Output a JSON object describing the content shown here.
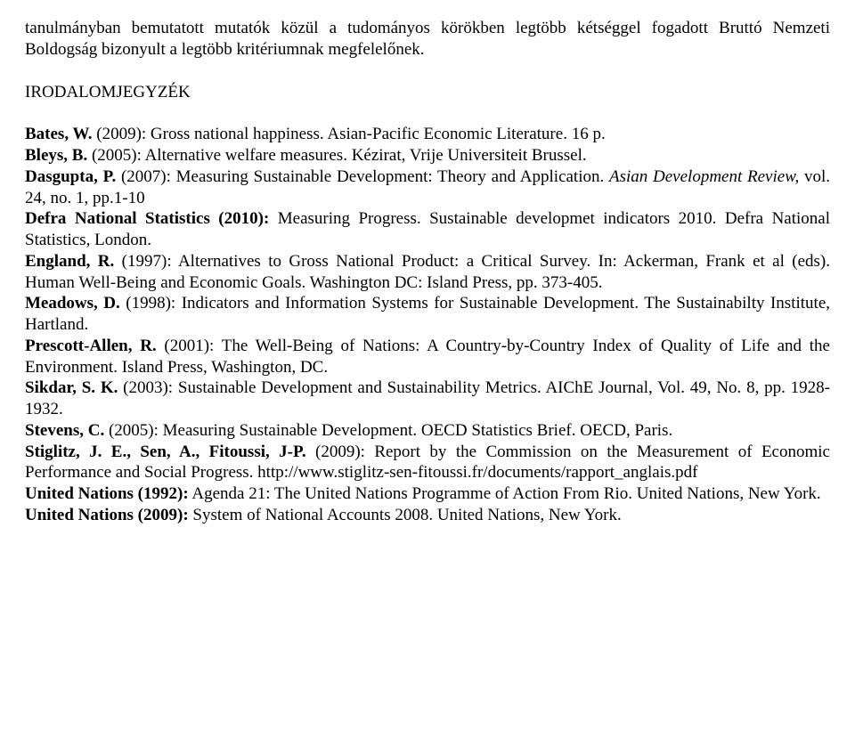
{
  "intro": {
    "text": "tanulmányban bemutatott mutatók közül a tudományos körökben legtöbb kétséggel fogadott Bruttó Nemzeti Boldogság bizonyult a legtöbb kritériumnak megfelelőnek."
  },
  "heading": "IRODALOMJEGYZÉK",
  "refs": {
    "bates": {
      "author": "Bates, W.",
      "rest": " (2009): Gross national happiness. Asian-Pacific Economic Literature. 16 p."
    },
    "bleys": {
      "author": "Bleys, B.",
      "rest": " (2005): Alternative welfare measures. Kézirat, Vrije Universiteit Brussel."
    },
    "dasgupta": {
      "author": "Dasgupta, P.",
      "mid1": " (2007): Measuring Sustainable Development: Theory and Application. ",
      "italic": "Asian Development Review,",
      "mid2": " vol. 24, no. 1, pp.1-10"
    },
    "defra": {
      "author": "Defra National Statistics (2010):",
      "rest": " Measuring Progress. Sustainable developmet indicators 2010. Defra National Statistics, London."
    },
    "england": {
      "author": "England, R.",
      "rest": " (1997): Alternatives to Gross National Product: a Critical Survey. In: Ackerman, Frank et al (eds). Human Well-Being and Economic Goals. Washington DC: Island Press, pp. 373-405."
    },
    "meadows": {
      "author": "Meadows, D.",
      "rest": " (1998): Indicators and Information Systems for Sustainable Development. The Sustainabilty Institute, Hartland."
    },
    "prescott": {
      "author": "Prescott-Allen, R.",
      "rest": " (2001): The Well-Being of Nations: A Country-by-Country Index of Quality of Life and the Environment. Island Press, Washington, DC."
    },
    "sikdar": {
      "author": "Sikdar, S. K.",
      "rest": " (2003): Sustainable Development and Sustainability Metrics. AIChE Journal, Vol. 49, No. 8, pp. 1928-1932."
    },
    "stevens": {
      "author": "Stevens, C.",
      "rest": " (2005): Measuring Sustainable Development. OECD Statistics Brief. OECD, Paris."
    },
    "stiglitz": {
      "author": "Stiglitz, J. E., Sen, A., Fitoussi, J-P.",
      "rest": " (2009): Report by the Commission on the Measurement of Economic Performance and Social Progress. http://www.stiglitz-sen-fitoussi.fr/documents/rapport_anglais.pdf"
    },
    "un1992": {
      "author": "United Nations (1992):",
      "rest": " Agenda 21: The United Nations Programme of Action From Rio. United Nations, New York."
    },
    "un2009": {
      "author": "United Nations (2009):",
      "rest": " System of National Accounts 2008. United Nations, New York."
    }
  }
}
